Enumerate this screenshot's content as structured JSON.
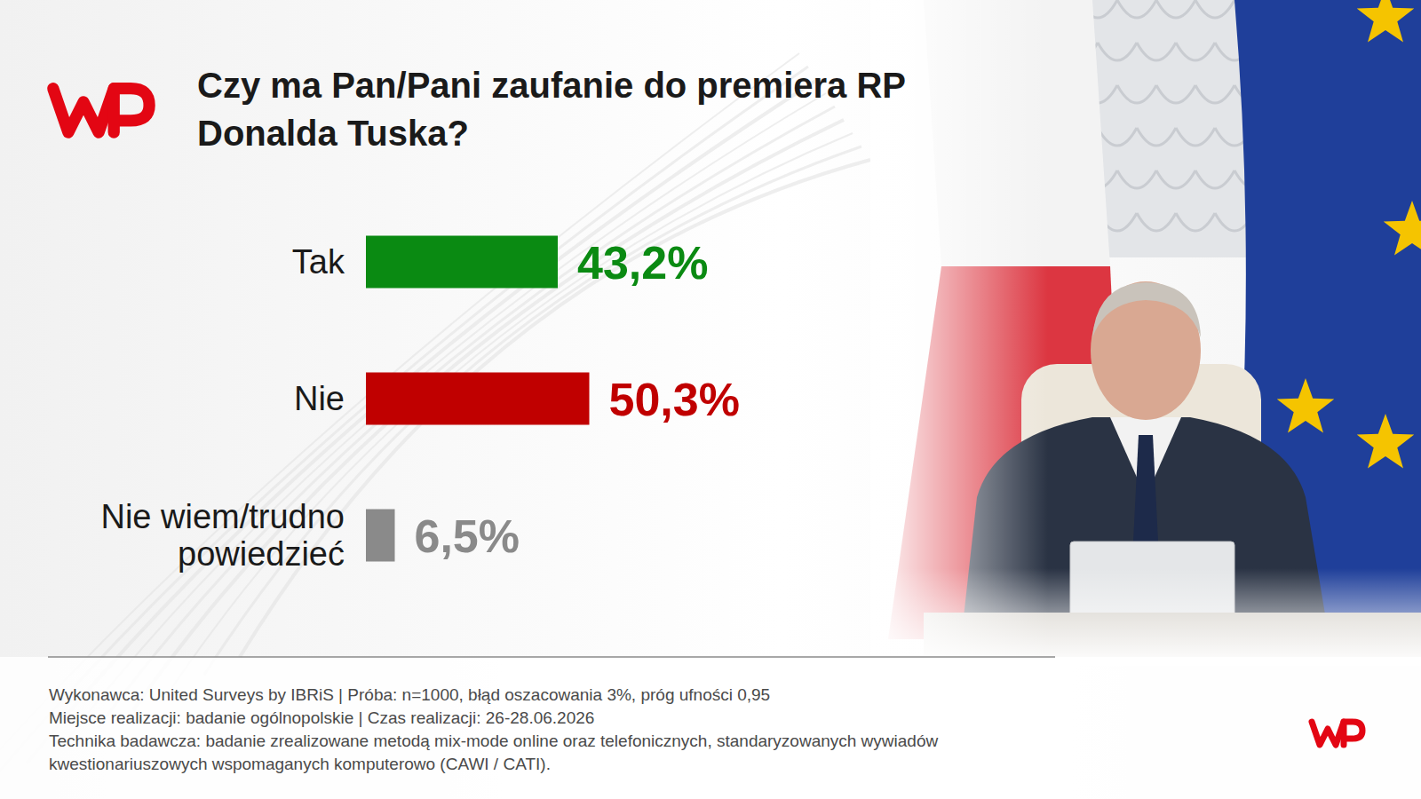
{
  "chart_data": {
    "type": "bar",
    "orientation": "horizontal",
    "title": "Czy ma Pan/Pani zaufanie do premiera RP Donalda Tuska?",
    "categories": [
      "Tak",
      "Nie",
      "Nie wiem/trudno powiedzieć"
    ],
    "values": [
      43.2,
      50.3,
      6.5
    ],
    "value_labels": [
      "43,2%",
      "50,3%",
      "6,5%"
    ],
    "colors": [
      "#0a8a12",
      "#c00000",
      "#8a8a8a"
    ],
    "data_labels": true,
    "tick_labels": false,
    "grid": false,
    "notes": [
      "Wykonawca: United Surveys by IBRiS | Próba: n=1000, błąd oszacowania 3%, próg ufności 0,95",
      "Miejsce realizacji: badanie ogólnopolskie | Czas realizacji: 26-28.06.2026",
      "Technika badawcza: badanie zrealizowane metodą mix-mode online oraz telefonicznych, standaryzowanych wywiadów kwestionariuszowych wspomaganych komputerowo (CAWI / CATI)."
    ]
  }
}
